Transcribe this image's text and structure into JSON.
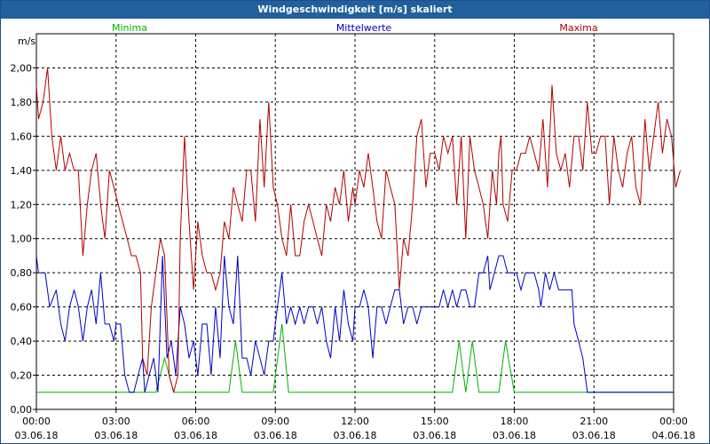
{
  "window": {
    "title": "Windgeschwindigkeit [m/s] skaliert"
  },
  "chart_data": {
    "type": "line",
    "ylabel": "m/s",
    "ylim": [
      0,
      2.2
    ],
    "xlim_hours": [
      0,
      24
    ],
    "grid": true,
    "yticks": [
      "0,00",
      "0,20",
      "0,40",
      "0,60",
      "0,80",
      "1,00",
      "1,20",
      "1,40",
      "1,60",
      "1,80",
      "2,00"
    ],
    "xticks": [
      {
        "time": "00:00",
        "date": "03.06.18"
      },
      {
        "time": "03:00",
        "date": "03.06.18"
      },
      {
        "time": "06:00",
        "date": "03.06.18"
      },
      {
        "time": "09:00",
        "date": "03.06.18"
      },
      {
        "time": "12:00",
        "date": "03.06.18"
      },
      {
        "time": "15:00",
        "date": "03.06.18"
      },
      {
        "time": "18:00",
        "date": "03.06.18"
      },
      {
        "time": "21:00",
        "date": "03.06.18"
      },
      {
        "time": "00:00",
        "date": "04.06.18"
      }
    ],
    "series": [
      {
        "name": "Minima",
        "color": "#00b000",
        "points": [
          [
            0,
            0.1
          ],
          [
            4.5,
            0.1
          ],
          [
            4.83,
            0.3
          ],
          [
            5.17,
            0.1
          ],
          [
            7.25,
            0.1
          ],
          [
            7.5,
            0.4
          ],
          [
            7.75,
            0.1
          ],
          [
            8.92,
            0.1
          ],
          [
            9.25,
            0.5
          ],
          [
            9.5,
            0.1
          ],
          [
            15.67,
            0.1
          ],
          [
            15.92,
            0.4
          ],
          [
            16.17,
            0.1
          ],
          [
            16.42,
            0.4
          ],
          [
            16.67,
            0.1
          ],
          [
            17.42,
            0.1
          ],
          [
            17.67,
            0.4
          ],
          [
            18.0,
            0.1
          ],
          [
            24,
            0.1
          ]
        ]
      },
      {
        "name": "Mittelwerte",
        "color": "#0000c0",
        "points": [
          [
            0,
            0.9
          ],
          [
            0.08,
            0.8
          ],
          [
            0.33,
            0.8
          ],
          [
            0.5,
            0.6
          ],
          [
            0.75,
            0.7
          ],
          [
            0.92,
            0.5
          ],
          [
            1.08,
            0.4
          ],
          [
            1.25,
            0.6
          ],
          [
            1.42,
            0.7
          ],
          [
            1.58,
            0.6
          ],
          [
            1.75,
            0.4
          ],
          [
            1.92,
            0.6
          ],
          [
            2.08,
            0.7
          ],
          [
            2.25,
            0.5
          ],
          [
            2.42,
            0.8
          ],
          [
            2.58,
            0.5
          ],
          [
            2.75,
            0.5
          ],
          [
            2.92,
            0.4
          ],
          [
            3.0,
            0.5
          ],
          [
            3.17,
            0.5
          ],
          [
            3.33,
            0.2
          ],
          [
            3.5,
            0.1
          ],
          [
            3.67,
            0.1
          ],
          [
            3.83,
            0.2
          ],
          [
            4.0,
            0.3
          ],
          [
            4.08,
            0.1
          ],
          [
            4.25,
            0.2
          ],
          [
            4.42,
            0.3
          ],
          [
            4.58,
            0.1
          ],
          [
            4.75,
            0.9
          ],
          [
            4.92,
            0.3
          ],
          [
            5.08,
            0.4
          ],
          [
            5.25,
            0.2
          ],
          [
            5.42,
            0.6
          ],
          [
            5.58,
            0.5
          ],
          [
            5.75,
            0.3
          ],
          [
            5.92,
            0.4
          ],
          [
            6.08,
            0.2
          ],
          [
            6.25,
            0.5
          ],
          [
            6.42,
            0.5
          ],
          [
            6.58,
            0.2
          ],
          [
            6.75,
            0.6
          ],
          [
            6.92,
            0.3
          ],
          [
            7.08,
            0.9
          ],
          [
            7.25,
            0.6
          ],
          [
            7.42,
            0.5
          ],
          [
            7.58,
            0.9
          ],
          [
            7.75,
            0.3
          ],
          [
            7.92,
            0.3
          ],
          [
            8.08,
            0.2
          ],
          [
            8.25,
            0.4
          ],
          [
            8.42,
            0.3
          ],
          [
            8.58,
            0.2
          ],
          [
            8.75,
            0.4
          ],
          [
            8.92,
            0.4
          ],
          [
            9.08,
            0.6
          ],
          [
            9.25,
            0.8
          ],
          [
            9.42,
            0.5
          ],
          [
            9.58,
            0.6
          ],
          [
            9.75,
            0.5
          ],
          [
            9.92,
            0.6
          ],
          [
            10.08,
            0.5
          ],
          [
            10.25,
            0.6
          ],
          [
            10.42,
            0.6
          ],
          [
            10.58,
            0.5
          ],
          [
            10.75,
            0.6
          ],
          [
            10.92,
            0.4
          ],
          [
            11.08,
            0.3
          ],
          [
            11.25,
            0.6
          ],
          [
            11.42,
            0.4
          ],
          [
            11.58,
            0.7
          ],
          [
            11.75,
            0.5
          ],
          [
            11.92,
            0.4
          ],
          [
            12.0,
            0.6
          ],
          [
            12.17,
            0.6
          ],
          [
            12.33,
            0.7
          ],
          [
            12.5,
            0.6
          ],
          [
            12.67,
            0.3
          ],
          [
            12.83,
            0.6
          ],
          [
            13.0,
            0.6
          ],
          [
            13.17,
            0.5
          ],
          [
            13.33,
            0.6
          ],
          [
            13.5,
            0.7
          ],
          [
            13.67,
            0.7
          ],
          [
            13.83,
            0.5
          ],
          [
            14.0,
            0.6
          ],
          [
            14.17,
            0.6
          ],
          [
            14.33,
            0.5
          ],
          [
            14.5,
            0.6
          ],
          [
            14.67,
            0.6
          ],
          [
            14.83,
            0.6
          ],
          [
            15.0,
            0.6
          ],
          [
            15.17,
            0.6
          ],
          [
            15.33,
            0.7
          ],
          [
            15.5,
            0.6
          ],
          [
            15.67,
            0.7
          ],
          [
            15.83,
            0.6
          ],
          [
            16.0,
            0.7
          ],
          [
            16.17,
            0.7
          ],
          [
            16.33,
            0.6
          ],
          [
            16.5,
            0.6
          ],
          [
            16.67,
            0.8
          ],
          [
            16.83,
            0.8
          ],
          [
            17.0,
            0.9
          ],
          [
            17.08,
            0.7
          ],
          [
            17.25,
            0.8
          ],
          [
            17.42,
            0.9
          ],
          [
            17.58,
            0.9
          ],
          [
            17.75,
            0.8
          ],
          [
            17.92,
            0.8
          ],
          [
            18.08,
            0.8
          ],
          [
            18.25,
            0.7
          ],
          [
            18.42,
            0.8
          ],
          [
            18.58,
            0.8
          ],
          [
            18.75,
            0.8
          ],
          [
            18.92,
            0.7
          ],
          [
            19.0,
            0.6
          ],
          [
            19.17,
            0.8
          ],
          [
            19.33,
            0.7
          ],
          [
            19.5,
            0.8
          ],
          [
            19.67,
            0.7
          ],
          [
            19.83,
            0.7
          ],
          [
            20.0,
            0.7
          ],
          [
            20.17,
            0.7
          ],
          [
            20.25,
            0.5
          ],
          [
            20.42,
            0.4
          ],
          [
            20.58,
            0.3
          ],
          [
            20.75,
            0.1
          ],
          [
            24,
            0.1
          ]
        ]
      },
      {
        "name": "Maxima",
        "color": "#b00000",
        "points": [
          [
            0,
            1.9
          ],
          [
            0.08,
            1.7
          ],
          [
            0.25,
            1.8
          ],
          [
            0.42,
            2.0
          ],
          [
            0.58,
            1.6
          ],
          [
            0.75,
            1.4
          ],
          [
            0.92,
            1.6
          ],
          [
            1.08,
            1.4
          ],
          [
            1.25,
            1.5
          ],
          [
            1.42,
            1.4
          ],
          [
            1.58,
            1.4
          ],
          [
            1.75,
            0.9
          ],
          [
            1.92,
            1.2
          ],
          [
            2.08,
            1.4
          ],
          [
            2.25,
            1.5
          ],
          [
            2.42,
            1.2
          ],
          [
            2.58,
            1.0
          ],
          [
            2.75,
            1.4
          ],
          [
            2.92,
            1.3
          ],
          [
            3.08,
            1.2
          ],
          [
            3.25,
            1.1
          ],
          [
            3.42,
            1.0
          ],
          [
            3.58,
            0.9
          ],
          [
            3.75,
            0.9
          ],
          [
            3.92,
            0.8
          ],
          [
            4.0,
            0.3
          ],
          [
            4.17,
            0.2
          ],
          [
            4.33,
            0.6
          ],
          [
            4.5,
            0.8
          ],
          [
            4.67,
            1.0
          ],
          [
            4.83,
            0.9
          ],
          [
            5.0,
            0.2
          ],
          [
            5.17,
            0.1
          ],
          [
            5.33,
            0.2
          ],
          [
            5.42,
            1.0
          ],
          [
            5.58,
            1.6
          ],
          [
            5.75,
            1.1
          ],
          [
            5.92,
            0.7
          ],
          [
            6.08,
            1.1
          ],
          [
            6.25,
            0.9
          ],
          [
            6.42,
            0.8
          ],
          [
            6.58,
            0.8
          ],
          [
            6.75,
            0.7
          ],
          [
            6.92,
            0.8
          ],
          [
            7.08,
            1.1
          ],
          [
            7.25,
            1.0
          ],
          [
            7.42,
            1.3
          ],
          [
            7.58,
            1.2
          ],
          [
            7.75,
            1.1
          ],
          [
            7.92,
            1.4
          ],
          [
            8.08,
            1.4
          ],
          [
            8.25,
            1.1
          ],
          [
            8.42,
            1.7
          ],
          [
            8.58,
            1.3
          ],
          [
            8.75,
            1.8
          ],
          [
            8.92,
            1.3
          ],
          [
            9.08,
            1.2
          ],
          [
            9.25,
            1.0
          ],
          [
            9.42,
            0.9
          ],
          [
            9.58,
            1.2
          ],
          [
            9.75,
            0.9
          ],
          [
            9.92,
            0.9
          ],
          [
            10.08,
            1.1
          ],
          [
            10.25,
            1.2
          ],
          [
            10.42,
            1.1
          ],
          [
            10.58,
            1.0
          ],
          [
            10.75,
            0.9
          ],
          [
            10.92,
            1.2
          ],
          [
            11.08,
            1.1
          ],
          [
            11.25,
            1.3
          ],
          [
            11.42,
            1.2
          ],
          [
            11.58,
            1.4
          ],
          [
            11.75,
            1.1
          ],
          [
            11.92,
            1.3
          ],
          [
            12.0,
            1.2
          ],
          [
            12.17,
            1.4
          ],
          [
            12.33,
            1.3
          ],
          [
            12.5,
            1.5
          ],
          [
            12.67,
            1.3
          ],
          [
            12.83,
            1.1
          ],
          [
            13.0,
            1.0
          ],
          [
            13.17,
            1.4
          ],
          [
            13.33,
            1.3
          ],
          [
            13.5,
            1.2
          ],
          [
            13.67,
            0.7
          ],
          [
            13.83,
            1.0
          ],
          [
            14.0,
            0.9
          ],
          [
            14.17,
            1.2
          ],
          [
            14.33,
            1.6
          ],
          [
            14.5,
            1.7
          ],
          [
            14.67,
            1.3
          ],
          [
            14.83,
            1.5
          ],
          [
            15.0,
            1.5
          ],
          [
            15.17,
            1.4
          ],
          [
            15.33,
            1.6
          ],
          [
            15.5,
            1.5
          ],
          [
            15.67,
            1.6
          ],
          [
            15.83,
            1.2
          ],
          [
            16.0,
            1.6
          ],
          [
            16.17,
            1.0
          ],
          [
            16.33,
            1.6
          ],
          [
            16.5,
            1.4
          ],
          [
            16.67,
            1.3
          ],
          [
            16.83,
            1.2
          ],
          [
            17.0,
            1.0
          ],
          [
            17.17,
            1.4
          ],
          [
            17.33,
            1.2
          ],
          [
            17.42,
            1.5
          ],
          [
            17.5,
            1.6
          ],
          [
            17.58,
            1.2
          ],
          [
            17.75,
            1.1
          ],
          [
            17.92,
            1.4
          ],
          [
            18.08,
            1.4
          ],
          [
            18.25,
            1.5
          ],
          [
            18.42,
            1.5
          ],
          [
            18.58,
            1.6
          ],
          [
            18.75,
            1.5
          ],
          [
            18.92,
            1.4
          ],
          [
            19.08,
            1.7
          ],
          [
            19.25,
            1.3
          ],
          [
            19.42,
            1.9
          ],
          [
            19.58,
            1.5
          ],
          [
            19.75,
            1.4
          ],
          [
            19.92,
            1.5
          ],
          [
            20.08,
            1.3
          ],
          [
            20.25,
            1.6
          ],
          [
            20.42,
            1.6
          ],
          [
            20.58,
            1.4
          ],
          [
            20.75,
            1.8
          ],
          [
            20.92,
            1.5
          ],
          [
            21.08,
            1.5
          ],
          [
            21.25,
            1.6
          ],
          [
            21.42,
            1.6
          ],
          [
            21.58,
            1.2
          ],
          [
            21.75,
            1.6
          ],
          [
            21.92,
            1.4
          ],
          [
            22.08,
            1.3
          ],
          [
            22.25,
            1.5
          ],
          [
            22.42,
            1.6
          ],
          [
            22.58,
            1.3
          ],
          [
            22.75,
            1.2
          ],
          [
            22.92,
            1.7
          ],
          [
            23.08,
            1.4
          ],
          [
            23.25,
            1.6
          ],
          [
            23.42,
            1.8
          ],
          [
            23.58,
            1.5
          ],
          [
            23.75,
            1.7
          ],
          [
            23.92,
            1.6
          ],
          [
            24.08,
            1.3
          ],
          [
            24.25,
            1.4
          ]
        ]
      }
    ]
  }
}
